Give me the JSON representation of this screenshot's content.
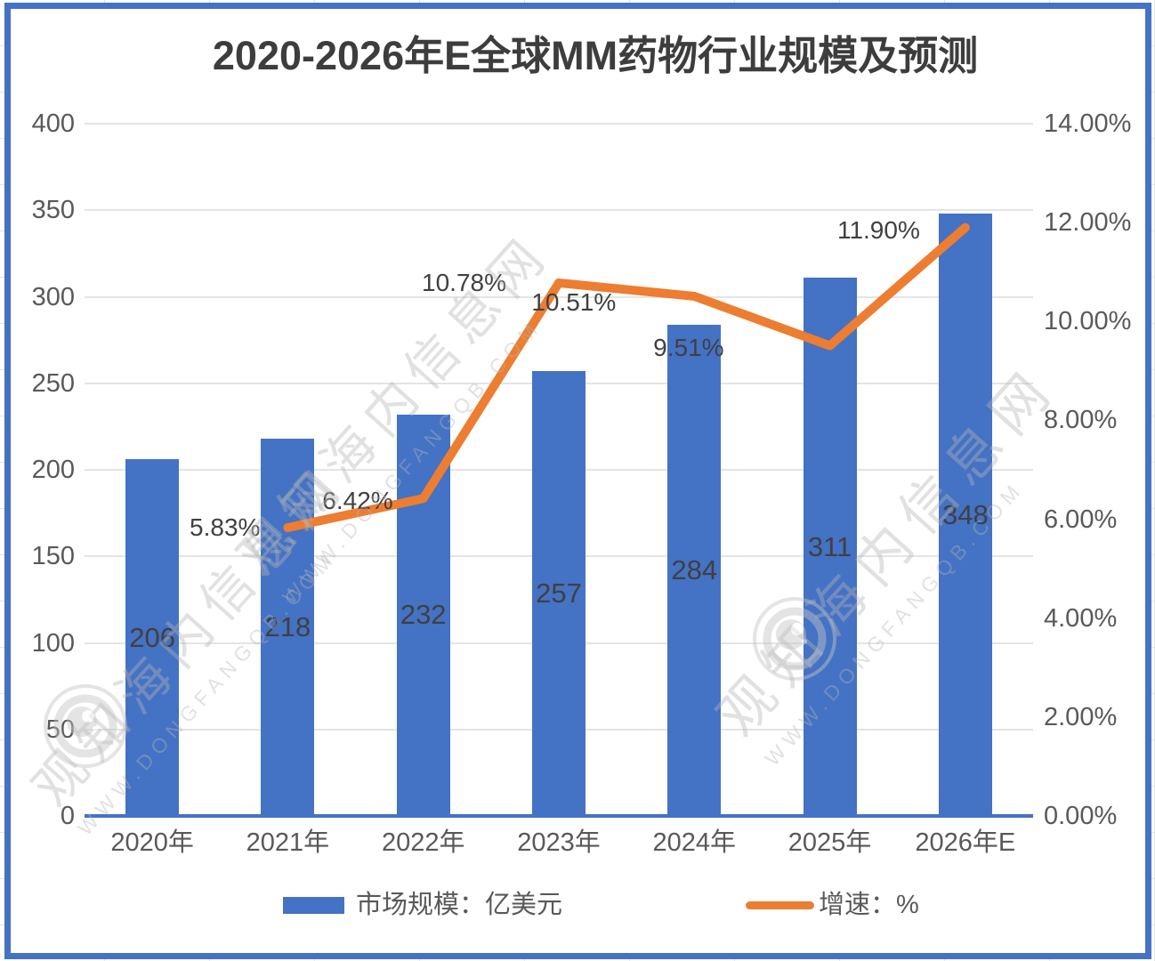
{
  "title": "2020-2026年E全球MM药物行业规模及预测",
  "chart_data": {
    "type": "bar",
    "subtype": "combo-bar-line-dual-axis",
    "title": "2020-2026年E全球MM药物行业规模及预测",
    "categories": [
      "2020年",
      "2021年",
      "2022年",
      "2023年",
      "2024年",
      "2025年",
      "2026年E"
    ],
    "series": [
      {
        "name": "市场规模：亿美元",
        "type": "bar",
        "axis": "left",
        "color": "#4472C4",
        "values": [
          206,
          218,
          232,
          257,
          284,
          311,
          348
        ],
        "value_labels": [
          "206",
          "218",
          "232",
          "257",
          "284",
          "311",
          "348"
        ]
      },
      {
        "name": "增速：%",
        "type": "line",
        "axis": "right",
        "color": "#ED7D31",
        "categories": [
          "2021年",
          "2022年",
          "2023年",
          "2024年",
          "2025年",
          "2026年E"
        ],
        "values": [
          5.83,
          6.42,
          10.78,
          10.51,
          9.51,
          11.9
        ],
        "value_labels": [
          "5.83%",
          "6.42%",
          "10.78%",
          "10.51%",
          "9.51%",
          "11.90%"
        ]
      }
    ],
    "left_axis": {
      "min": 0,
      "max": 400,
      "step": 50,
      "ticks": [
        "400",
        "350",
        "300",
        "250",
        "200",
        "150",
        "100",
        "50",
        "0"
      ]
    },
    "right_axis": {
      "min": 0,
      "max": 14,
      "step": 2,
      "ticks": [
        "14.00%",
        "12.00%",
        "10.00%",
        "8.00%",
        "6.00%",
        "4.00%",
        "2.00%",
        "0.00%"
      ]
    },
    "grid": true,
    "legend_position": "bottom"
  },
  "legend": {
    "bar_label": "市场规模：亿美元",
    "line_label": "增速：%"
  },
  "watermark": {
    "cn": "观知海内信息网",
    "en": "WWW.DONGFANGQB.COM"
  },
  "colors": {
    "bar": "#4472C4",
    "line": "#ED7D31",
    "grid": "#E4E4E4",
    "axis_text": "#595959",
    "label_text": "#404040",
    "frame": "#4472C4",
    "title_text": "#3D3D3D"
  }
}
